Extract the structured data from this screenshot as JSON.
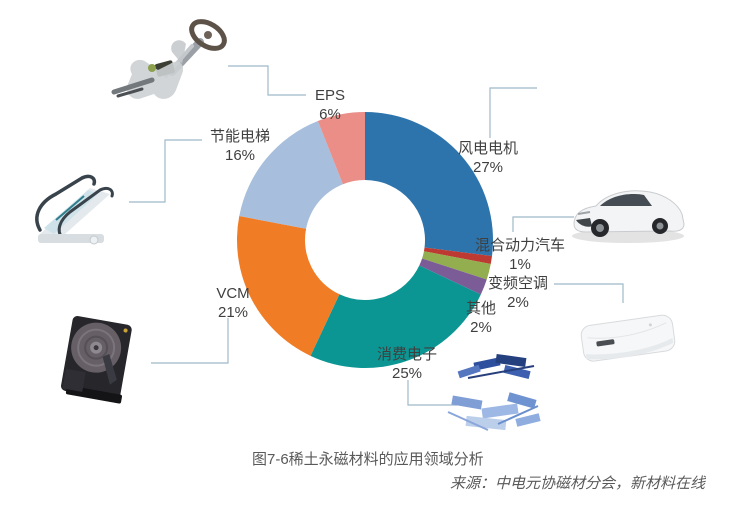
{
  "figure": {
    "caption": "图7-6稀土永磁材料的应用领域分析",
    "source": "来源：中电元协磁材分会，新材料在线"
  },
  "chart_data": {
    "type": "pie",
    "subtype": "donut",
    "title": "图7-6稀土永磁材料的应用领域分析",
    "start_angle_deg": -90,
    "direction": "clockwise",
    "legend_position": "none",
    "background": "#FFFFFF",
    "leader_line_color": "#9FB9C9",
    "slices": [
      {
        "label": "风电电机",
        "value": 27,
        "pct": "27%",
        "color": "#2E74AC"
      },
      {
        "label": "混合动力汽车",
        "value": 1,
        "pct": "1%",
        "color": "#BD3A33"
      },
      {
        "label": "变频空调",
        "value": 2,
        "pct": "2%",
        "color": "#92AE4E"
      },
      {
        "label": "其他",
        "value": 2,
        "pct": "2%",
        "color": "#7C5C97"
      },
      {
        "label": "消费电子",
        "value": 25,
        "pct": "25%",
        "color": "#0B9693"
      },
      {
        "label": "VCM",
        "value": 21,
        "pct": "21%",
        "color": "#F07D26"
      },
      {
        "label": "节能电梯",
        "value": 16,
        "pct": "16%",
        "color": "#A7BEDC"
      },
      {
        "label": "EPS",
        "value": 6,
        "pct": "6%",
        "color": "#EA8E87"
      }
    ]
  }
}
